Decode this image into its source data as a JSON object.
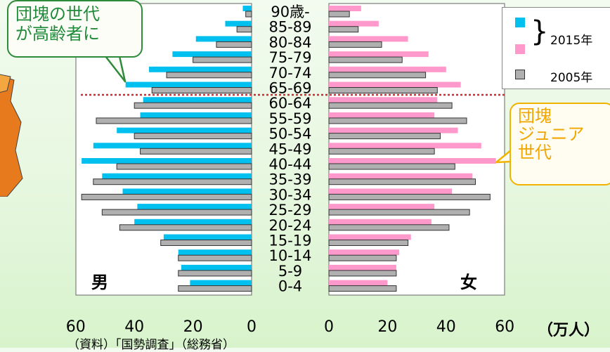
{
  "chart_data": {
    "type": "bar",
    "orientation": "horizontal",
    "layout": "population-pyramid",
    "categories": [
      "90歳-",
      "85-89",
      "80-84",
      "75-79",
      "70-74",
      "65-69",
      "60-64",
      "55-59",
      "50-54",
      "45-49",
      "40-44",
      "35-39",
      "30-34",
      "25-29",
      "20-24",
      "15-19",
      "10-14",
      "5-9",
      "0-4"
    ],
    "male": {
      "label": "男",
      "series": [
        {
          "name": "2015年",
          "color": "#00c0f0",
          "values": [
            3,
            9,
            19,
            27,
            35,
            43,
            37,
            38,
            46,
            54,
            58,
            51,
            44,
            39,
            40,
            30,
            25,
            24,
            21
          ]
        },
        {
          "name": "2005年",
          "color": "#b0b0b0",
          "values": [
            2,
            5,
            12,
            20,
            29,
            34,
            40,
            53,
            40,
            38,
            46,
            54,
            58,
            51,
            45,
            31,
            25,
            25,
            25
          ]
        }
      ]
    },
    "female": {
      "label": "女",
      "series": [
        {
          "name": "2015年",
          "color": "#ff99cc",
          "values": [
            11,
            17,
            27,
            34,
            40,
            45,
            37,
            36,
            44,
            52,
            57,
            49,
            42,
            36,
            35,
            28,
            24,
            23,
            20
          ]
        },
        {
          "name": "2005年",
          "color": "#b0b0b0",
          "values": [
            7,
            10,
            18,
            25,
            33,
            37,
            42,
            47,
            38,
            36,
            43,
            50,
            55,
            48,
            41,
            27,
            23,
            23,
            23
          ]
        }
      ]
    },
    "x_ticks_left": [
      "60",
      "40",
      "20",
      "0"
    ],
    "x_ticks_right": [
      "0",
      "20",
      "40",
      "60"
    ],
    "xlim": [
      0,
      60
    ],
    "unit_label": "（万人）",
    "grid": false
  },
  "legend": {
    "year_2015": "2015年",
    "year_2005": "2005年",
    "color_male_2015": "#00c0f0",
    "color_female_2015": "#ff99cc",
    "color_2005": "#b0b0b0"
  },
  "annotations": {
    "dankai": "団塊の世代が高齢者に",
    "dankai_line1": "団塊の世代",
    "dankai_line2": "が高齢者に",
    "junior_line1": "団塊",
    "junior_line2": "ジュニア",
    "junior_line3": "世代"
  },
  "source": "（資料）「国勢調査」（総務省）"
}
